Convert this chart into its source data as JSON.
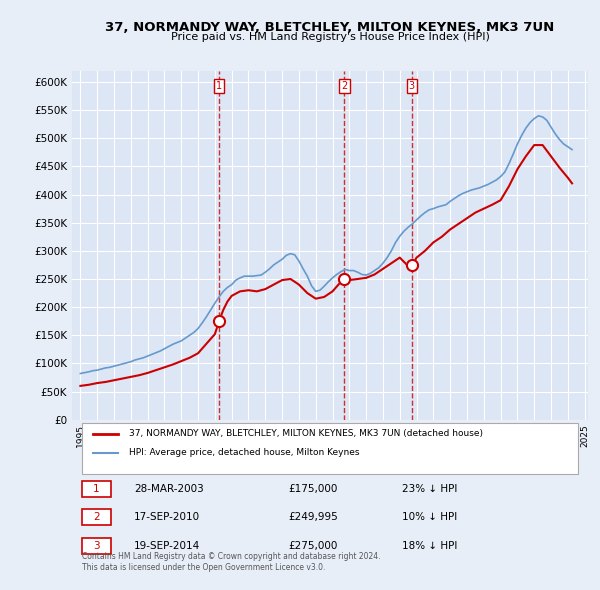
{
  "title": "37, NORMANDY WAY, BLETCHLEY, MILTON KEYNES, MK3 7UN",
  "subtitle": "Price paid vs. HM Land Registry's House Price Index (HPI)",
  "background_color": "#e8eef8",
  "plot_bg_color": "#dce6f5",
  "ylim": [
    0,
    620000
  ],
  "yticks": [
    0,
    50000,
    100000,
    150000,
    200000,
    250000,
    300000,
    350000,
    400000,
    450000,
    500000,
    550000,
    600000
  ],
  "ytick_labels": [
    "£0",
    "£50K",
    "£100K",
    "£150K",
    "£200K",
    "£250K",
    "£300K",
    "£350K",
    "£400K",
    "£450K",
    "£500K",
    "£550K",
    "£600K"
  ],
  "legend_house_label": "37, NORMANDY WAY, BLETCHLEY, MILTON KEYNES, MK3 7UN (detached house)",
  "legend_hpi_label": "HPI: Average price, detached house, Milton Keynes",
  "house_color": "#cc0000",
  "hpi_color": "#6699cc",
  "marker_color": "#cc0000",
  "vline_color": "#cc0000",
  "transaction_labels": [
    "1",
    "2",
    "3"
  ],
  "transaction_dates_display": [
    "28-MAR-2003",
    "17-SEP-2010",
    "19-SEP-2014"
  ],
  "transaction_prices_display": [
    "£175,000",
    "£249,995",
    "£275,000"
  ],
  "transaction_pct_display": [
    "23% ↓ HPI",
    "10% ↓ HPI",
    "18% ↓ HPI"
  ],
  "transaction_years": [
    2003.23,
    2010.71,
    2014.71
  ],
  "transaction_prices": [
    175000,
    249995,
    275000
  ],
  "footer_text": "Contains HM Land Registry data © Crown copyright and database right 2024.\nThis data is licensed under the Open Government Licence v3.0.",
  "hpi_years": [
    1995,
    1995.25,
    1995.5,
    1995.75,
    1996,
    1996.25,
    1996.5,
    1996.75,
    1997,
    1997.25,
    1997.5,
    1997.75,
    1998,
    1998.25,
    1998.5,
    1998.75,
    1999,
    1999.25,
    1999.5,
    1999.75,
    2000,
    2000.25,
    2000.5,
    2000.75,
    2001,
    2001.25,
    2001.5,
    2001.75,
    2002,
    2002.25,
    2002.5,
    2002.75,
    2003,
    2003.25,
    2003.5,
    2003.75,
    2004,
    2004.25,
    2004.5,
    2004.75,
    2005,
    2005.25,
    2005.5,
    2005.75,
    2006,
    2006.25,
    2006.5,
    2006.75,
    2007,
    2007.25,
    2007.5,
    2007.75,
    2008,
    2008.25,
    2008.5,
    2008.75,
    2009,
    2009.25,
    2009.5,
    2009.75,
    2010,
    2010.25,
    2010.5,
    2010.75,
    2011,
    2011.25,
    2011.5,
    2011.75,
    2012,
    2012.25,
    2012.5,
    2012.75,
    2013,
    2013.25,
    2013.5,
    2013.75,
    2014,
    2014.25,
    2014.5,
    2014.75,
    2015,
    2015.25,
    2015.5,
    2015.75,
    2016,
    2016.25,
    2016.5,
    2016.75,
    2017,
    2017.25,
    2017.5,
    2017.75,
    2018,
    2018.25,
    2018.5,
    2018.75,
    2019,
    2019.25,
    2019.5,
    2019.75,
    2020,
    2020.25,
    2020.5,
    2020.75,
    2021,
    2021.25,
    2021.5,
    2021.75,
    2022,
    2022.25,
    2022.5,
    2022.75,
    2023,
    2023.25,
    2023.5,
    2023.75,
    2024,
    2024.25
  ],
  "hpi_values": [
    82000,
    83500,
    85000,
    87000,
    88000,
    90000,
    92000,
    93000,
    95000,
    97000,
    99000,
    101000,
    103000,
    106000,
    108000,
    110000,
    113000,
    116000,
    119000,
    122000,
    126000,
    130000,
    134000,
    137000,
    140000,
    145000,
    150000,
    155000,
    162000,
    172000,
    183000,
    195000,
    207000,
    218000,
    228000,
    235000,
    240000,
    248000,
    252000,
    255000,
    255000,
    255000,
    256000,
    257000,
    262000,
    268000,
    275000,
    280000,
    285000,
    292000,
    295000,
    293000,
    282000,
    268000,
    255000,
    238000,
    228000,
    230000,
    237000,
    245000,
    252000,
    258000,
    263000,
    267000,
    265000,
    265000,
    262000,
    258000,
    257000,
    260000,
    265000,
    270000,
    278000,
    288000,
    300000,
    315000,
    326000,
    335000,
    342000,
    348000,
    355000,
    362000,
    368000,
    373000,
    375000,
    378000,
    380000,
    382000,
    388000,
    393000,
    398000,
    402000,
    405000,
    408000,
    410000,
    412000,
    415000,
    418000,
    422000,
    426000,
    432000,
    440000,
    455000,
    472000,
    490000,
    505000,
    518000,
    528000,
    535000,
    540000,
    538000,
    532000,
    520000,
    508000,
    498000,
    490000,
    485000,
    480000
  ],
  "house_years": [
    1995,
    1995.5,
    1996,
    1996.5,
    1997,
    1997.5,
    1998,
    1998.5,
    1999,
    1999.5,
    2000,
    2000.5,
    2001,
    2001.5,
    2002,
    2002.5,
    2003,
    2003.25,
    2003.5,
    2003.75,
    2004,
    2004.5,
    2005,
    2005.5,
    2006,
    2006.5,
    2007,
    2007.5,
    2008,
    2008.5,
    2009,
    2009.5,
    2010,
    2010.5,
    2010.75,
    2011,
    2011.5,
    2012,
    2012.5,
    2013,
    2013.5,
    2014,
    2014.5,
    2014.75,
    2015,
    2015.5,
    2016,
    2016.5,
    2017,
    2017.5,
    2018,
    2018.5,
    2019,
    2019.5,
    2020,
    2020.5,
    2021,
    2021.5,
    2022,
    2022.5,
    2023,
    2023.5,
    2024,
    2024.25
  ],
  "house_values": [
    60000,
    62000,
    65000,
    67000,
    70000,
    73000,
    76000,
    79000,
    83000,
    88000,
    93000,
    98000,
    104000,
    110000,
    118000,
    135000,
    152000,
    175000,
    195000,
    210000,
    220000,
    228000,
    230000,
    228000,
    232000,
    240000,
    248000,
    250000,
    240000,
    225000,
    215000,
    218000,
    228000,
    245000,
    249995,
    248000,
    250000,
    252000,
    258000,
    268000,
    278000,
    288000,
    273000,
    275000,
    288000,
    300000,
    315000,
    325000,
    338000,
    348000,
    358000,
    368000,
    375000,
    382000,
    390000,
    415000,
    445000,
    468000,
    488000,
    488000,
    468000,
    448000,
    430000,
    420000
  ]
}
